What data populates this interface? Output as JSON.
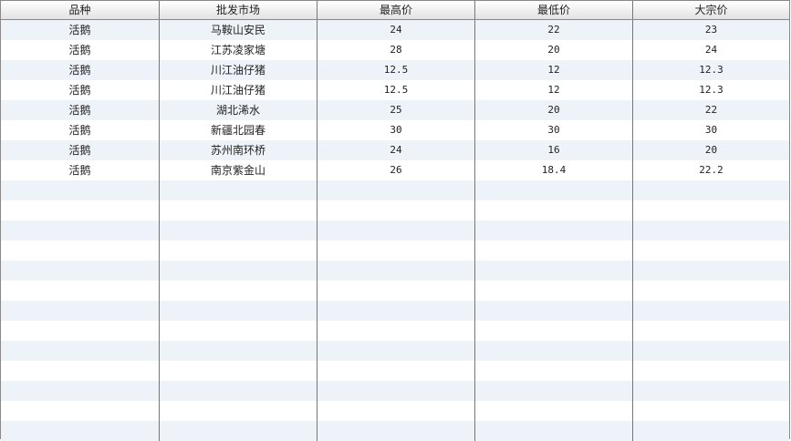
{
  "table": {
    "columns": [
      "品种",
      "批发市场",
      "最高价",
      "最低价",
      "大宗价"
    ],
    "rows": [
      [
        "活鹅",
        "马鞍山安民",
        "24",
        "22",
        "23"
      ],
      [
        "活鹅",
        "江苏凌家塘",
        "28",
        "20",
        "24"
      ],
      [
        "活鹅",
        "川江油仔猪",
        "12.5",
        "12",
        "12.3"
      ],
      [
        "活鹅",
        "川江油仔猪",
        "12.5",
        "12",
        "12.3"
      ],
      [
        "活鹅",
        "湖北浠水",
        "25",
        "20",
        "22"
      ],
      [
        "活鹅",
        "新疆北园春",
        "30",
        "30",
        "30"
      ],
      [
        "活鹅",
        "苏州南环桥",
        "24",
        "16",
        "20"
      ],
      [
        "活鹅",
        "南京紫金山",
        "26",
        "18.4",
        "22.2"
      ]
    ],
    "stripe_color": "#eef2f9"
  }
}
